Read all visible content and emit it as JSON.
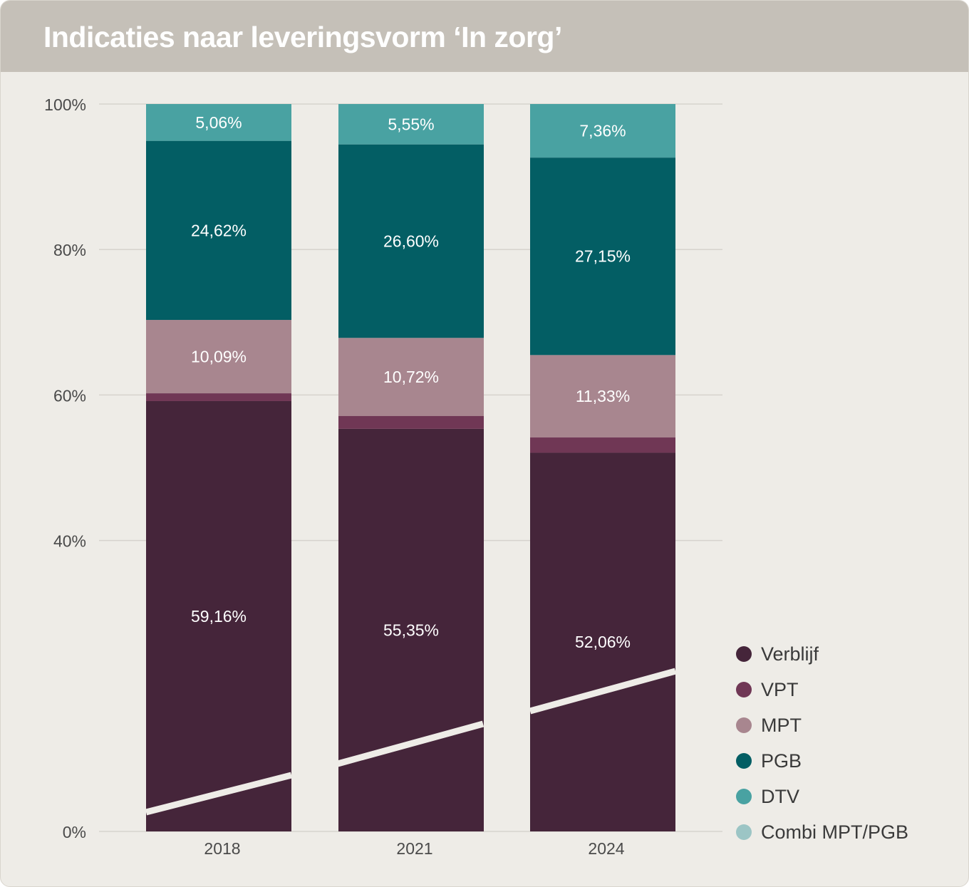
{
  "title": "Indicaties naar leveringsvorm ‘In zorg’",
  "chart_data": {
    "type": "bar",
    "stacked": true,
    "title": "Indicaties naar leveringsvorm ‘In zorg’",
    "xlabel": "",
    "ylabel": "",
    "ylim": [
      0,
      100
    ],
    "yticks": [
      "0%",
      "40%",
      "60%",
      "80%",
      "100%"
    ],
    "ytick_values": [
      0,
      40,
      60,
      80,
      100
    ],
    "categories": [
      "2018",
      "2021",
      "2024"
    ],
    "series": [
      {
        "name": "Verblijf",
        "color": "#45253a",
        "values": [
          59.16,
          55.35,
          52.06
        ],
        "labels": [
          "59,16%",
          "55,35%",
          "52,06%"
        ]
      },
      {
        "name": "VPT",
        "color": "#703755",
        "values": [
          1.07,
          1.78,
          2.1
        ],
        "labels": [
          "",
          "",
          ""
        ]
      },
      {
        "name": "MPT",
        "color": "#a8868f",
        "values": [
          10.09,
          10.72,
          11.33
        ],
        "labels": [
          "10,09%",
          "10,72%",
          "11,33%"
        ]
      },
      {
        "name": "PGB",
        "color": "#035e64",
        "values": [
          24.62,
          26.6,
          27.15
        ],
        "labels": [
          "24,62%",
          "26,60%",
          "27,15%"
        ]
      },
      {
        "name": "DTV",
        "color": "#49a2a2",
        "values": [
          5.06,
          5.55,
          7.36
        ],
        "labels": [
          "5,06%",
          "5,55%",
          "7,36%"
        ]
      },
      {
        "name": "Combi MPT/PGB",
        "color": "#9cc5c5",
        "values": [
          0,
          0,
          0
        ],
        "labels": [
          "",
          "",
          ""
        ]
      }
    ],
    "axis_break": true,
    "grid": true,
    "legend_position": "bottom-right"
  }
}
